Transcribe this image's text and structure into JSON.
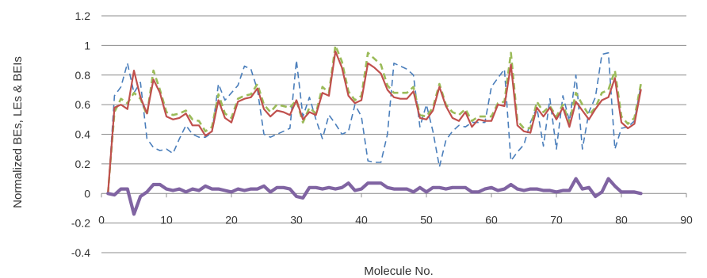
{
  "chart_data": {
    "type": "line",
    "title": "",
    "xlabel": "Molecule No.",
    "ylabel": "Normalized BEs,  LEs & BEIs",
    "xlim": [
      0,
      90
    ],
    "ylim": [
      -0.4,
      1.2
    ],
    "x_ticks": [
      0,
      10,
      20,
      30,
      40,
      50,
      60,
      70,
      80,
      90
    ],
    "x_tick_labels": [
      "0",
      "10",
      "20",
      "30",
      "40",
      "50",
      "60",
      "70",
      "80",
      "90"
    ],
    "y_ticks": [
      -0.4,
      -0.2,
      0,
      0.2,
      0.4,
      0.6,
      0.8,
      1,
      1.2
    ],
    "y_tick_labels": [
      "-0.4",
      "-0.2",
      "0",
      "0.2",
      "0.4",
      "0.6",
      "0.8",
      "1",
      "1.2"
    ],
    "grid": "horizontal",
    "legend": "none",
    "x": [
      1,
      2,
      3,
      4,
      5,
      6,
      7,
      8,
      9,
      10,
      11,
      12,
      13,
      14,
      15,
      16,
      17,
      18,
      19,
      20,
      21,
      22,
      23,
      24,
      25,
      26,
      27,
      28,
      29,
      30,
      31,
      32,
      33,
      34,
      35,
      36,
      37,
      38,
      39,
      40,
      41,
      42,
      43,
      44,
      45,
      46,
      47,
      48,
      49,
      50,
      51,
      52,
      53,
      54,
      55,
      56,
      57,
      58,
      59,
      60,
      61,
      62,
      63,
      64,
      65,
      66,
      67,
      68,
      69,
      70,
      71,
      72,
      73,
      74,
      75,
      76,
      77,
      78,
      79,
      80,
      81,
      82,
      83
    ],
    "series": [
      {
        "color": "#4a7ebb",
        "style": "dashed",
        "width": 1.6,
        "values": [
          0.0,
          0.66,
          0.72,
          0.88,
          0.68,
          0.75,
          0.37,
          0.31,
          0.29,
          0.3,
          0.27,
          0.37,
          0.46,
          0.4,
          0.38,
          0.38,
          0.41,
          0.74,
          0.63,
          0.68,
          0.73,
          0.86,
          0.84,
          0.7,
          0.4,
          0.38,
          0.4,
          0.42,
          0.44,
          0.9,
          0.52,
          0.65,
          0.5,
          0.37,
          0.53,
          0.47,
          0.4,
          0.42,
          0.6,
          0.52,
          0.22,
          0.21,
          0.21,
          0.4,
          0.88,
          0.86,
          0.84,
          0.8,
          0.45,
          0.6,
          0.42,
          0.18,
          0.36,
          0.42,
          0.46,
          0.45,
          0.48,
          0.48,
          0.48,
          0.72,
          0.78,
          0.84,
          0.22,
          0.28,
          0.33,
          0.48,
          0.58,
          0.32,
          0.64,
          0.3,
          0.66,
          0.49,
          0.8,
          0.3,
          0.55,
          0.65,
          0.94,
          0.95,
          0.3,
          0.44,
          0.45,
          0.49,
          0.73
        ]
      },
      {
        "color": "#9bbb59",
        "style": "dashed",
        "width": 2.6,
        "values": [
          0.0,
          0.55,
          0.64,
          0.61,
          0.68,
          0.64,
          0.53,
          0.83,
          0.7,
          0.55,
          0.53,
          0.54,
          0.56,
          0.5,
          0.49,
          0.42,
          0.45,
          0.67,
          0.54,
          0.51,
          0.64,
          0.66,
          0.67,
          0.74,
          0.6,
          0.55,
          0.6,
          0.59,
          0.58,
          0.63,
          0.48,
          0.58,
          0.54,
          0.72,
          0.68,
          1.0,
          0.89,
          0.69,
          0.63,
          0.66,
          0.95,
          0.91,
          0.87,
          0.73,
          0.68,
          0.68,
          0.68,
          0.72,
          0.53,
          0.52,
          0.58,
          0.74,
          0.6,
          0.55,
          0.53,
          0.57,
          0.49,
          0.52,
          0.52,
          0.52,
          0.61,
          0.62,
          0.95,
          0.49,
          0.44,
          0.44,
          0.62,
          0.55,
          0.59,
          0.52,
          0.6,
          0.48,
          0.68,
          0.6,
          0.53,
          0.58,
          0.68,
          0.7,
          0.83,
          0.52,
          0.47,
          0.51,
          0.74
        ]
      },
      {
        "color": "#c0504d",
        "style": "solid",
        "width": 2.2,
        "values": [
          0.0,
          0.58,
          0.6,
          0.57,
          0.83,
          0.65,
          0.54,
          0.77,
          0.68,
          0.52,
          0.5,
          0.51,
          0.54,
          0.46,
          0.46,
          0.39,
          0.42,
          0.63,
          0.51,
          0.48,
          0.62,
          0.64,
          0.65,
          0.71,
          0.57,
          0.52,
          0.56,
          0.55,
          0.53,
          0.63,
          0.5,
          0.55,
          0.53,
          0.68,
          0.66,
          0.96,
          0.85,
          0.66,
          0.61,
          0.63,
          0.88,
          0.85,
          0.81,
          0.7,
          0.65,
          0.64,
          0.64,
          0.69,
          0.51,
          0.5,
          0.56,
          0.72,
          0.59,
          0.51,
          0.49,
          0.55,
          0.45,
          0.5,
          0.49,
          0.49,
          0.6,
          0.59,
          0.87,
          0.46,
          0.42,
          0.41,
          0.58,
          0.52,
          0.58,
          0.5,
          0.58,
          0.45,
          0.62,
          0.56,
          0.5,
          0.57,
          0.63,
          0.65,
          0.78,
          0.48,
          0.44,
          0.47,
          0.7
        ]
      },
      {
        "color": "#8064a2",
        "style": "solid",
        "width": 4.2,
        "values": [
          0.0,
          -0.01,
          0.03,
          0.03,
          -0.14,
          -0.02,
          0.01,
          0.06,
          0.06,
          0.03,
          0.02,
          0.03,
          0.01,
          0.03,
          0.02,
          0.05,
          0.03,
          0.03,
          0.02,
          0.01,
          0.03,
          0.02,
          0.03,
          0.03,
          0.05,
          0.01,
          0.04,
          0.04,
          0.03,
          -0.02,
          -0.03,
          0.04,
          0.04,
          0.03,
          0.04,
          0.03,
          0.04,
          0.07,
          0.02,
          0.03,
          0.07,
          0.07,
          0.07,
          0.04,
          0.03,
          0.03,
          0.03,
          0.01,
          0.04,
          0.01,
          0.04,
          0.04,
          0.03,
          0.04,
          0.04,
          0.04,
          0.01,
          0.01,
          0.03,
          0.04,
          0.02,
          0.03,
          0.06,
          0.03,
          0.02,
          0.03,
          0.03,
          0.02,
          0.02,
          0.01,
          0.02,
          0.02,
          0.1,
          0.03,
          0.04,
          -0.02,
          0.01,
          0.1,
          0.05,
          0.01,
          0.01,
          0.01,
          0.0
        ]
      }
    ]
  }
}
